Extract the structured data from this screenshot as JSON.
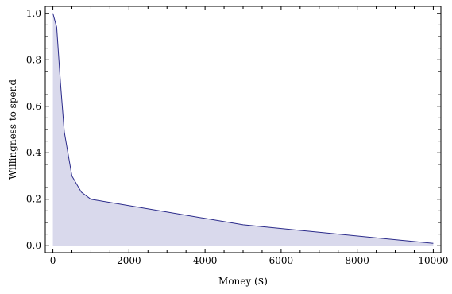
{
  "chart_data": {
    "type": "area",
    "xlabel": "Money ($)",
    "ylabel": "Willingness to spend",
    "xlim": [
      -200,
      10200
    ],
    "ylim": [
      -0.03,
      1.03
    ],
    "x_ticks": [
      0,
      2000,
      4000,
      6000,
      8000,
      10000
    ],
    "x_tick_labels": [
      "0",
      "2000",
      "4000",
      "6000",
      "8000",
      "10000"
    ],
    "y_ticks": [
      0.0,
      0.2,
      0.4,
      0.6,
      0.8,
      1.0
    ],
    "y_tick_labels": [
      "0.0",
      "0.2",
      "0.4",
      "0.6",
      "0.8",
      "1.0"
    ],
    "grid": false,
    "colors": {
      "line": "#2a2a8a",
      "fill": "#d9d9ec"
    },
    "series": [
      {
        "x": [
          0,
          100,
          200,
          300,
          500,
          750,
          1000,
          5000,
          10000
        ],
        "y": [
          1.0,
          0.94,
          0.7,
          0.49,
          0.3,
          0.23,
          0.2,
          0.09,
          0.01
        ]
      }
    ]
  }
}
